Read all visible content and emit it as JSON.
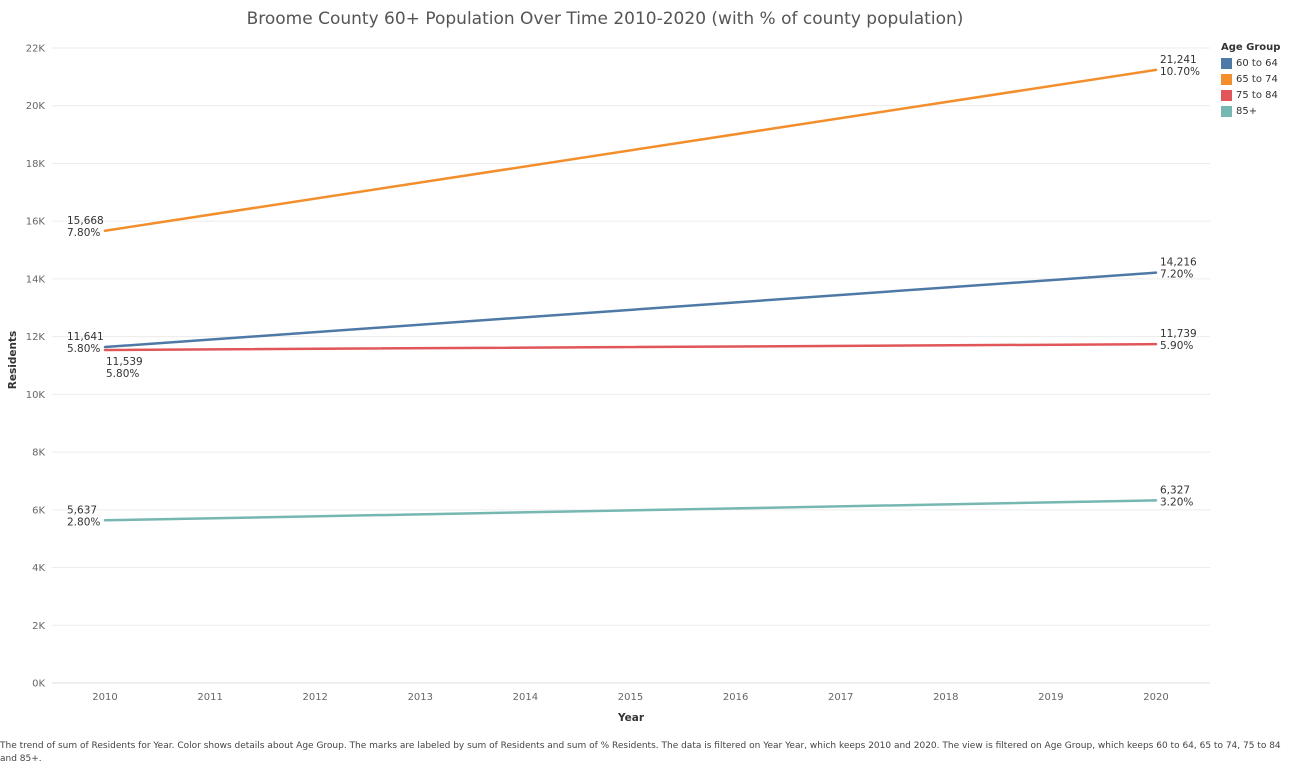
{
  "chart_data": {
    "type": "line",
    "title": "Broome County 60+ Population Over Time 2010-2020 (with % of county population)",
    "xlabel": "Year",
    "ylabel": "Residents",
    "x": [
      "2010",
      "2011",
      "2012",
      "2013",
      "2014",
      "2015",
      "2016",
      "2017",
      "2018",
      "2019",
      "2020"
    ],
    "ylim": [
      0,
      22000
    ],
    "yticks": [
      0,
      2000,
      4000,
      6000,
      8000,
      10000,
      12000,
      14000,
      16000,
      18000,
      20000,
      22000
    ],
    "ytick_labels": [
      "0K",
      "2K",
      "4K",
      "6K",
      "8K",
      "10K",
      "12K",
      "14K",
      "16K",
      "18K",
      "20K",
      "22K"
    ],
    "grid": true,
    "legend": {
      "title": "Age Group",
      "placement": "right"
    },
    "series": [
      {
        "name": "60 to 64",
        "color": "#4e79a7",
        "points": [
          {
            "x": "2010",
            "y": 11641,
            "label": "11,641",
            "pct": "5.80%"
          },
          {
            "x": "2020",
            "y": 14216,
            "label": "14,216",
            "pct": "7.20%"
          }
        ]
      },
      {
        "name": "65 to 74",
        "color": "#f28e2b",
        "points": [
          {
            "x": "2010",
            "y": 15668,
            "label": "15,668",
            "pct": "7.80%"
          },
          {
            "x": "2020",
            "y": 21241,
            "label": "21,241",
            "pct": "10.70%"
          }
        ]
      },
      {
        "name": "75 to 84",
        "color": "#e15759",
        "points": [
          {
            "x": "2010",
            "y": 11539,
            "label": "11,539",
            "pct": "5.80%"
          },
          {
            "x": "2020",
            "y": 11739,
            "label": "11,739",
            "pct": "5.90%"
          }
        ]
      },
      {
        "name": "85+",
        "color": "#76b7b2",
        "points": [
          {
            "x": "2010",
            "y": 5637,
            "label": "5,637",
            "pct": "2.80%"
          },
          {
            "x": "2020",
            "y": 6327,
            "label": "6,327",
            "pct": "3.20%"
          }
        ]
      }
    ]
  },
  "caption": "The trend of sum of Residents for Year.  Color shows details about Age Group.  The marks are labeled by sum of Residents and sum of % Residents. The data is filtered on Year Year, which keeps 2010 and 2020. The view is filtered on Age Group, which keeps 60 to 64, 65 to 74, 75 to 84 and 85+."
}
